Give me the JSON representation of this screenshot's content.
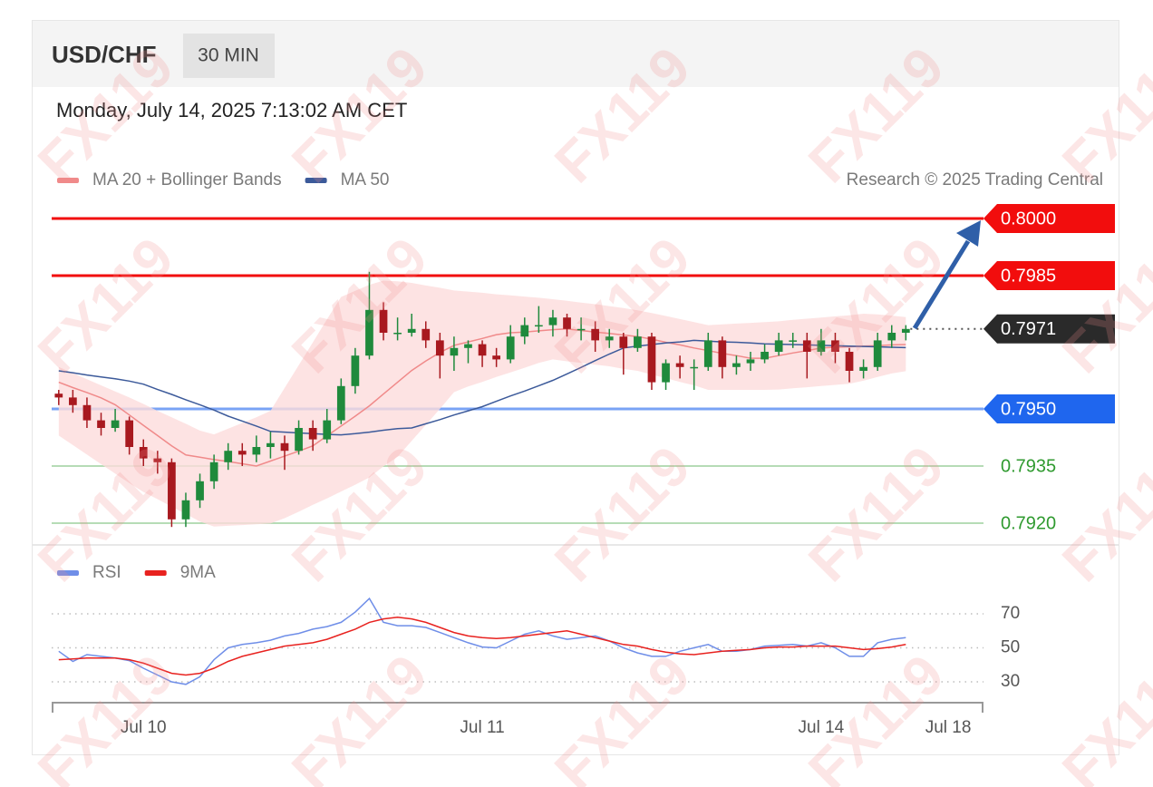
{
  "header": {
    "symbol": "USD/CHF",
    "interval": "30 MIN",
    "timestamp": "Monday, July 14, 2025 7:13:02 AM CET"
  },
  "watermark": "FX119",
  "chart_data": [
    {
      "type": "candlestick",
      "source": "Research © 2025 Trading Central",
      "up_color": "#1f8a3c",
      "down_color": "#a8191f",
      "ylim": [
        0.7915,
        0.8005
      ],
      "open": [
        0.7954,
        0.7953,
        0.7951,
        0.7947,
        0.7945,
        0.7947,
        0.794,
        0.7937,
        0.7936,
        0.7921,
        0.7926,
        0.7931,
        0.7936,
        0.7939,
        0.7938,
        0.794,
        0.7941,
        0.7939,
        0.7945,
        0.7942,
        0.7947,
        0.7956,
        0.7964,
        0.7976,
        0.797,
        0.797,
        0.7971,
        0.7968,
        0.7964,
        0.7966,
        0.7967,
        0.7964,
        0.7963,
        0.7969,
        0.7972,
        0.7972,
        0.7974,
        0.7971,
        0.7971,
        0.7968,
        0.7969,
        0.7966,
        0.7969,
        0.7957,
        0.7962,
        0.7961,
        0.7961,
        0.7968,
        0.7961,
        0.7962,
        0.7963,
        0.7965,
        0.7968,
        0.7968,
        0.7965,
        0.7968,
        0.7965,
        0.796,
        0.7961,
        0.7968,
        0.797,
        null,
        null,
        null,
        null,
        null
      ],
      "high": [
        0.7955,
        0.7955,
        0.7953,
        0.7949,
        0.795,
        0.7948,
        0.7942,
        0.7939,
        0.7937,
        0.7928,
        0.7933,
        0.7938,
        0.7941,
        0.7941,
        0.7943,
        0.7944,
        0.7943,
        0.7947,
        0.7947,
        0.795,
        0.7958,
        0.7966,
        0.7986,
        0.7978,
        0.7974,
        0.7975,
        0.7973,
        0.797,
        0.7969,
        0.7968,
        0.7968,
        0.7966,
        0.7972,
        0.7974,
        0.7977,
        0.7976,
        0.7975,
        0.7974,
        0.7973,
        0.7971,
        0.797,
        0.7971,
        0.797,
        0.7963,
        0.7964,
        0.7963,
        0.797,
        0.7969,
        0.7964,
        0.7965,
        0.7967,
        0.797,
        0.797,
        0.797,
        0.7971,
        0.797,
        0.7966,
        0.7963,
        0.797,
        0.7972,
        0.7972,
        null,
        null,
        null,
        null,
        null
      ],
      "low": [
        0.7951,
        0.7949,
        0.7945,
        0.7943,
        0.7944,
        0.7938,
        0.7935,
        0.7933,
        0.7919,
        0.7919,
        0.7924,
        0.7929,
        0.7934,
        0.7935,
        0.7936,
        0.7937,
        0.7934,
        0.7938,
        0.7939,
        0.7941,
        0.7946,
        0.7954,
        0.7963,
        0.7968,
        0.7968,
        0.7969,
        0.7966,
        0.7958,
        0.796,
        0.7962,
        0.7961,
        0.7961,
        0.7962,
        0.7967,
        0.797,
        0.7969,
        0.7969,
        0.7968,
        0.7965,
        0.7966,
        0.7959,
        0.7965,
        0.7955,
        0.7955,
        0.7958,
        0.7955,
        0.796,
        0.7958,
        0.7959,
        0.796,
        0.7962,
        0.7964,
        0.7966,
        0.7958,
        0.7964,
        0.7962,
        0.7957,
        0.7958,
        0.796,
        0.7966,
        0.7968,
        null,
        null,
        null,
        null,
        null
      ],
      "close": [
        0.7953,
        0.7951,
        0.7947,
        0.7945,
        0.7947,
        0.794,
        0.7937,
        0.7936,
        0.7921,
        0.7926,
        0.7931,
        0.7936,
        0.7939,
        0.7938,
        0.794,
        0.7941,
        0.7939,
        0.7945,
        0.7942,
        0.7947,
        0.7956,
        0.7964,
        0.7976,
        0.797,
        0.797,
        0.7971,
        0.7968,
        0.7964,
        0.7966,
        0.7967,
        0.7964,
        0.7963,
        0.7969,
        0.7972,
        0.7972,
        0.7974,
        0.7971,
        0.7971,
        0.7968,
        0.7969,
        0.7966,
        0.7969,
        0.7957,
        0.7962,
        0.7961,
        0.7961,
        0.7968,
        0.7961,
        0.7962,
        0.7963,
        0.7965,
        0.7968,
        0.7968,
        0.7965,
        0.7968,
        0.7965,
        0.796,
        0.7961,
        0.7968,
        0.797,
        0.7971,
        null,
        null,
        null,
        null,
        null
      ],
      "series": [
        {
          "name": "MA 20 + Bollinger Bands",
          "color": "#f08a8a",
          "band_color": "#fcdcdc",
          "values": [
            0.7957,
            0.79556,
            0.79543,
            0.79529,
            0.79511,
            0.79484,
            0.79457,
            0.7943,
            0.79403,
            0.79379,
            0.79373,
            0.79367,
            0.79362,
            0.79356,
            0.7935,
            0.79363,
            0.79376,
            0.79389,
            0.79403,
            0.79429,
            0.79455,
            0.79481,
            0.79508,
            0.79539,
            0.7957,
            0.79601,
            0.79626,
            0.79648,
            0.79667,
            0.79676,
            0.79685,
            0.79695,
            0.797,
            0.79702,
            0.79705,
            0.79708,
            0.7971,
            0.79706,
            0.79702,
            0.79698,
            0.79694,
            0.7969,
            0.79683,
            0.79675,
            0.79668,
            0.7966,
            0.79653,
            0.79646,
            0.7964,
            0.79633,
            0.79633,
            0.7964,
            0.79647,
            0.79653,
            0.7966,
            0.79662,
            0.79663,
            0.79665,
            0.79666,
            0.79668,
            0.79669,
            null,
            null,
            null,
            null,
            null
          ],
          "upper": [
            0.7961,
            0.79594,
            0.79578,
            0.79562,
            0.79546,
            0.7953,
            0.79513,
            0.79495,
            0.79478,
            0.79461,
            0.79443,
            0.79433,
            0.79448,
            0.79463,
            0.79478,
            0.79495,
            0.79555,
            0.79615,
            0.79675,
            0.79735,
            0.79794,
            0.7981,
            0.79826,
            0.79837,
            0.79835,
            0.79831,
            0.79824,
            0.79818,
            0.79811,
            0.79808,
            0.79805,
            0.79801,
            0.79798,
            0.79795,
            0.79792,
            0.79788,
            0.79784,
            0.79779,
            0.79775,
            0.7977,
            0.79765,
            0.79759,
            0.79752,
            0.79744,
            0.79736,
            0.79728,
            0.7972,
            0.79722,
            0.79724,
            0.79726,
            0.79728,
            0.7973,
            0.79734,
            0.79737,
            0.7974,
            0.79743,
            0.79746,
            0.7975,
            0.79748,
            0.79745,
            0.79741,
            null,
            null,
            null,
            null,
            null
          ],
          "lower": [
            0.7943,
            0.79405,
            0.7938,
            0.79355,
            0.7933,
            0.79305,
            0.79282,
            0.79263,
            0.79243,
            0.79224,
            0.79204,
            0.79191,
            0.79193,
            0.79195,
            0.79197,
            0.79199,
            0.79213,
            0.7923,
            0.79248,
            0.79265,
            0.79283,
            0.79301,
            0.7932,
            0.79349,
            0.79374,
            0.79416,
            0.79458,
            0.795,
            0.79544,
            0.79559,
            0.79571,
            0.79584,
            0.79596,
            0.79608,
            0.79621,
            0.7963,
            0.79625,
            0.79621,
            0.79616,
            0.79612,
            0.79605,
            0.796,
            0.7959,
            0.79581,
            0.79571,
            0.79562,
            0.7955,
            0.7955,
            0.7955,
            0.7955,
            0.7955,
            0.79551,
            0.79554,
            0.79557,
            0.7956,
            0.79563,
            0.79566,
            0.79574,
            0.79584,
            0.79593,
            0.79599,
            null,
            null,
            null,
            null,
            null
          ]
        },
        {
          "name": "MA 50",
          "color": "#3c5a9a",
          "values": [
            0.796,
            0.79595,
            0.79589,
            0.79584,
            0.79579,
            0.79573,
            0.79565,
            0.79551,
            0.79538,
            0.79524,
            0.79511,
            0.79497,
            0.79481,
            0.79468,
            0.79455,
            0.79441,
            0.79439,
            0.79437,
            0.79435,
            0.79433,
            0.79432,
            0.79435,
            0.79439,
            0.79444,
            0.79448,
            0.7945,
            0.79461,
            0.79472,
            0.79484,
            0.79495,
            0.79506,
            0.7952,
            0.79534,
            0.79547,
            0.79561,
            0.79575,
            0.79592,
            0.79609,
            0.79627,
            0.79644,
            0.7966,
            0.79665,
            0.79669,
            0.79673,
            0.79676,
            0.7968,
            0.79678,
            0.79676,
            0.79675,
            0.79673,
            0.79671,
            0.7967,
            0.79669,
            0.79668,
            0.79667,
            0.79666,
            0.79665,
            0.79664,
            0.79663,
            0.79662,
            0.79661,
            null,
            null,
            null,
            null,
            null
          ]
        }
      ],
      "levels": [
        {
          "value": 0.8,
          "label": "0.8000",
          "color": "#f20d0d",
          "line": "solid",
          "tag": true
        },
        {
          "value": 0.7985,
          "label": "0.7985",
          "color": "#f20d0d",
          "line": "solid",
          "tag": true
        },
        {
          "value": 0.7971,
          "label": "0.7971",
          "color": "#2a2a2a",
          "line": "dotted",
          "tag": true
        },
        {
          "value": 0.795,
          "label": "0.7950",
          "color": "#1f66ee",
          "line": "solid",
          "tag": true
        },
        {
          "value": 0.7935,
          "label": "0.7935",
          "color": "#2f9a2f",
          "line": "solid",
          "tag": false
        },
        {
          "value": 0.792,
          "label": "0.7920",
          "color": "#2f9a2f",
          "line": "solid",
          "tag": false
        }
      ]
    },
    {
      "type": "line",
      "categories": [
        null,
        null,
        null,
        null,
        null,
        null,
        "Jul 10",
        null,
        null,
        null,
        null,
        null,
        null,
        null,
        null,
        null,
        null,
        null,
        null,
        null,
        null,
        null,
        null,
        null,
        null,
        null,
        null,
        null,
        null,
        null,
        "Jul 11",
        null,
        null,
        null,
        null,
        null,
        null,
        null,
        null,
        null,
        null,
        null,
        null,
        null,
        null,
        null,
        null,
        null,
        null,
        null,
        null,
        null,
        null,
        null,
        "Jul 14",
        null,
        null,
        null,
        null,
        null,
        null,
        null,
        null,
        "Jul 18",
        null,
        null
      ],
      "ylim": [
        20,
        80
      ],
      "yticks": [
        70,
        50,
        30
      ],
      "grid": true,
      "series": [
        {
          "name": "RSI",
          "color": "#6f8ee8",
          "values": [
            48,
            42,
            46,
            45,
            44,
            42.5,
            38,
            34,
            30,
            28.5,
            33,
            43,
            50,
            52,
            53,
            54.5,
            57,
            58.5,
            61,
            62.5,
            65,
            71,
            79,
            65,
            63,
            63,
            62,
            59,
            56,
            53,
            50.5,
            50,
            54,
            58,
            60,
            57,
            55,
            56,
            57,
            54,
            50,
            47,
            45,
            45,
            48,
            50,
            52,
            48,
            48,
            49,
            51,
            51.5,
            52,
            51,
            53,
            50,
            45,
            45,
            53,
            55,
            56,
            null,
            null,
            null,
            null,
            null
          ]
        },
        {
          "name": "9MA",
          "color": "#e8221f",
          "values": [
            43,
            43.5,
            44,
            44,
            44,
            43,
            41,
            38,
            35,
            34,
            35,
            38,
            42,
            45,
            47,
            49,
            51,
            52,
            53,
            55,
            58,
            61,
            65,
            67,
            68,
            67,
            65,
            62,
            59,
            57,
            56,
            55.5,
            56,
            57,
            58,
            59,
            60,
            58,
            56,
            54,
            52,
            51,
            49,
            47.5,
            46.5,
            46,
            47,
            48,
            48.5,
            49,
            50,
            50.5,
            50.5,
            51,
            51,
            51,
            50,
            49,
            49.5,
            50.5,
            52,
            null,
            null,
            null,
            null,
            null
          ]
        }
      ]
    }
  ]
}
